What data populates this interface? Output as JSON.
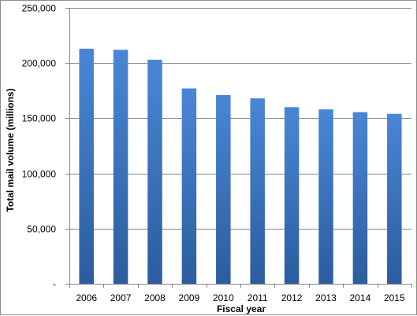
{
  "chart_data": {
    "type": "bar",
    "categories": [
      "2006",
      "2007",
      "2008",
      "2009",
      "2010",
      "2011",
      "2012",
      "2013",
      "2014",
      "2015"
    ],
    "values": [
      213000,
      212000,
      203000,
      177000,
      171000,
      168000,
      160000,
      158000,
      155500,
      154000
    ],
    "title": "",
    "xlabel": "Fiscal  year",
    "ylabel": "Total mail volume (millions)",
    "ylim": [
      0,
      250000
    ],
    "yticks": [
      0,
      50000,
      100000,
      150000,
      200000,
      250000
    ],
    "ytick_labels": [
      "-",
      "50,000",
      "100,000",
      "150,000",
      "200,000",
      "250,000"
    ],
    "grid": true,
    "legend": "none",
    "colors": {
      "bar_top": "#4a86d6",
      "bar_bottom": "#2b5d9e",
      "grid": "#858585",
      "axis": "#858585"
    }
  }
}
